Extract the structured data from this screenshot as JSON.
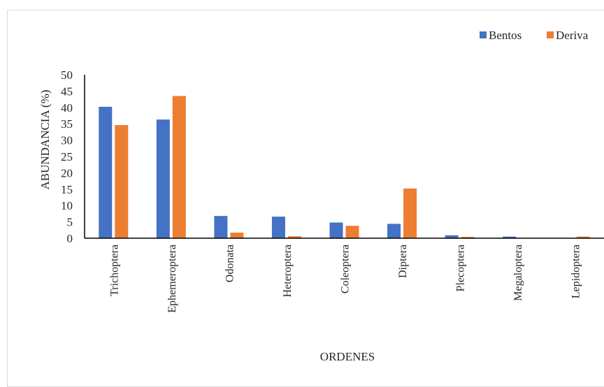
{
  "chart_data": {
    "type": "bar",
    "title": "",
    "xlabel": "ORDENES",
    "ylabel": "ABUNDANCIA  (%)",
    "ylim": [
      0,
      50
    ],
    "yticks": [
      0,
      5,
      10,
      15,
      20,
      25,
      30,
      35,
      40,
      45,
      50
    ],
    "categories": [
      "Trichoptera",
      "Ephemeroptera",
      "Odonata",
      "Heteroptera",
      "Coleoptera",
      "Diptera",
      "Plecoptera",
      "Megaloptera",
      "Lepidoptera"
    ],
    "series": [
      {
        "name": "Bentos",
        "color": "#4472c4",
        "values": [
          40.2,
          36.3,
          6.8,
          6.6,
          4.8,
          4.4,
          0.9,
          0.5,
          0.1
        ]
      },
      {
        "name": "Deriva",
        "color": "#ed7d31",
        "values": [
          34.6,
          43.5,
          1.7,
          0.6,
          3.8,
          15.2,
          0.4,
          0.0,
          0.5
        ]
      }
    ],
    "legend_position": "top-right",
    "grid": false
  }
}
